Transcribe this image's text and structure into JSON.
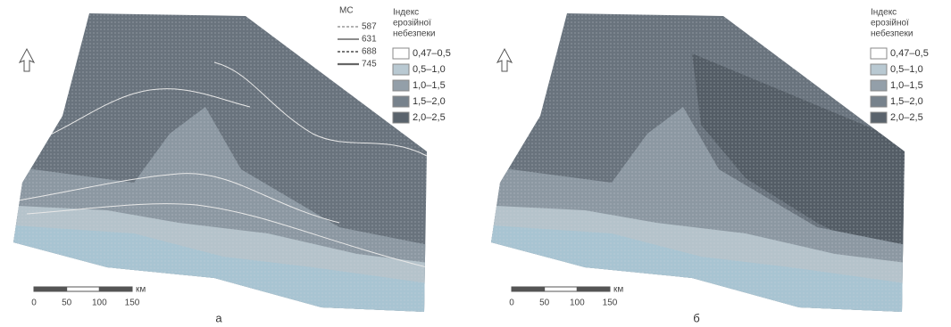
{
  "panels": [
    {
      "label": "а",
      "legend_contours": {
        "title": "МС",
        "items": [
          "587",
          "631",
          "688",
          "745"
        ]
      },
      "legend_index": {
        "title_lines": [
          "Індекс",
          "ерозійної",
          "небезпеки"
        ],
        "items": [
          "0,47–0,5",
          "0,5–1,0",
          "1,0–1,5",
          "1,5–2,0",
          "2,0–2,5"
        ]
      },
      "scale": {
        "ticks": [
          "0",
          "50",
          "100",
          "150"
        ],
        "unit": "км"
      }
    },
    {
      "label": "б",
      "legend_index": {
        "title_lines": [
          "Індекс",
          "ерозійної",
          "небезпеки"
        ],
        "items": [
          "0,47–0,5",
          "0,5–1,0",
          "1,0–1,5",
          "1,5–2,0",
          "2,0–2,5"
        ]
      },
      "scale": {
        "ticks": [
          "0",
          "50",
          "100",
          "150"
        ],
        "unit": "км"
      }
    }
  ]
}
